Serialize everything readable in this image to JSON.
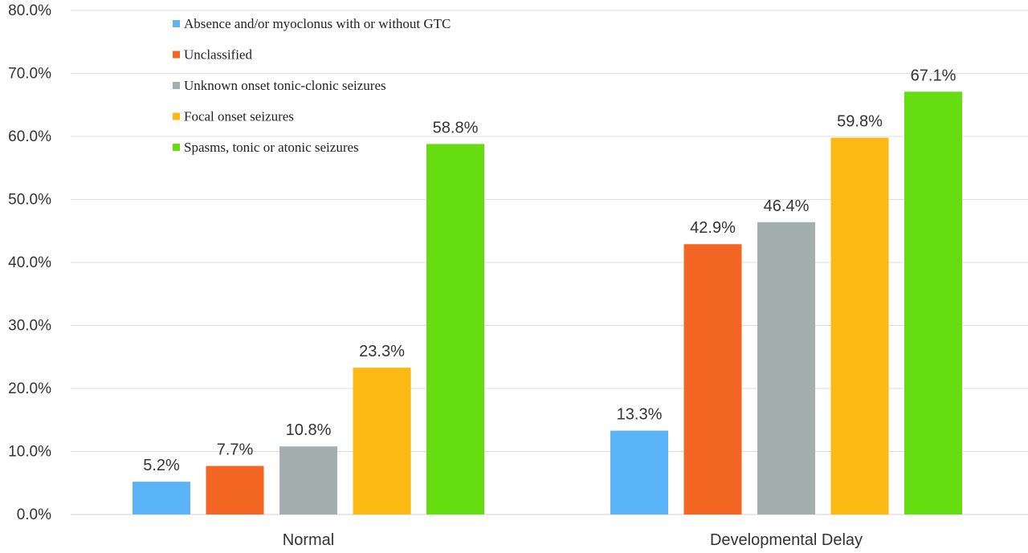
{
  "chart_data": {
    "type": "bar",
    "title": "",
    "xlabel": "",
    "ylabel": "",
    "ylim": [
      0,
      80
    ],
    "y_ticks": [
      "0.0%",
      "10.0%",
      "20.0%",
      "30.0%",
      "40.0%",
      "50.0%",
      "60.0%",
      "70.0%",
      "80.0%"
    ],
    "grid": "horizontal",
    "legend_position": "top-left inside plot",
    "categories": [
      "Normal",
      "Developmental Delay"
    ],
    "series": [
      {
        "name": "Absence and/or myoclonus with or without GTC",
        "color": "#5BB4F7",
        "values": [
          5.2,
          13.3
        ],
        "labels": [
          "5.2%",
          "13.3%"
        ]
      },
      {
        "name": "Unclassified",
        "color": "#F26522",
        "values": [
          7.7,
          42.9
        ],
        "labels": [
          "7.7%",
          "42.9%"
        ]
      },
      {
        "name": "Unknown onset tonic-clonic seizures",
        "color": "#A3AEAE",
        "values": [
          10.8,
          46.4
        ],
        "labels": [
          "10.8%",
          "46.4%"
        ]
      },
      {
        "name": "Focal onset seizures",
        "color": "#FDB913",
        "values": [
          23.3,
          59.8
        ],
        "labels": [
          "23.3%",
          "59.8%"
        ]
      },
      {
        "name": "Spasms, tonic or atonic seizures",
        "color": "#66DD11",
        "values": [
          58.8,
          67.1
        ],
        "labels": [
          "58.8%",
          "67.1%"
        ]
      }
    ]
  }
}
